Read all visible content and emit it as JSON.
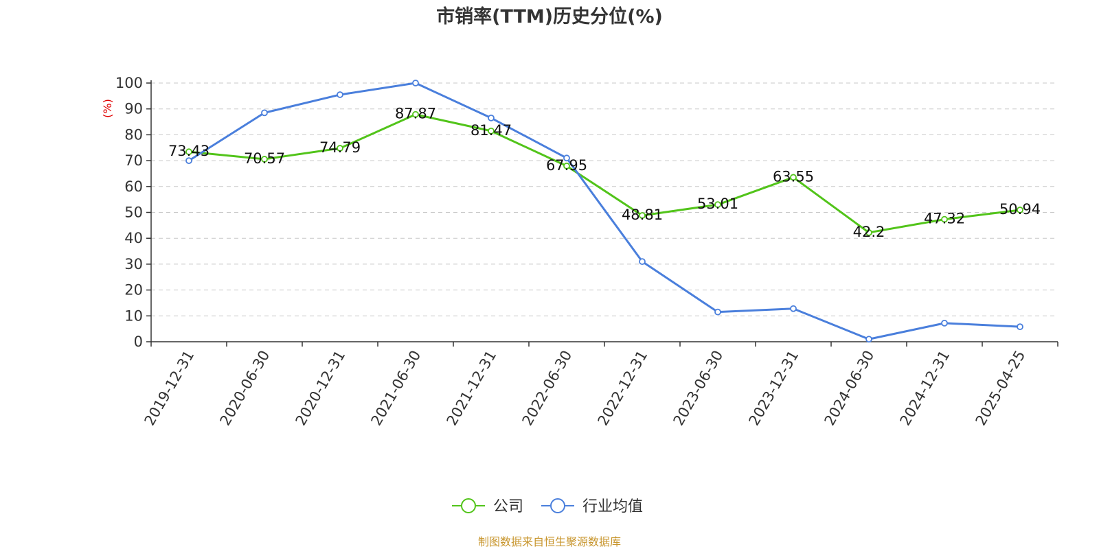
{
  "chart_data": {
    "type": "line",
    "title": "市销率(TTM)历史分位(%)",
    "ylabel": "(%)",
    "ylim": [
      0,
      100
    ],
    "yticks": [
      0,
      10,
      20,
      30,
      40,
      50,
      60,
      70,
      80,
      90,
      100
    ],
    "grid": true,
    "legend_position": "bottom",
    "categories": [
      "2019-12-31",
      "2020-06-30",
      "2020-12-31",
      "2021-06-30",
      "2021-12-31",
      "2022-06-30",
      "2022-12-31",
      "2023-06-30",
      "2023-12-31",
      "2024-06-30",
      "2024-12-31",
      "2025-04-25"
    ],
    "series": [
      {
        "name": "公司",
        "color": "#52c41a",
        "show_labels": true,
        "values": [
          73.43,
          70.57,
          74.79,
          87.87,
          81.47,
          67.95,
          48.81,
          53.01,
          63.55,
          42.2,
          47.32,
          50.94
        ]
      },
      {
        "name": "行业均值",
        "color": "#4a7fdc",
        "show_labels": false,
        "values": [
          70,
          88.5,
          95.5,
          100,
          86.5,
          71,
          31,
          11.5,
          12.8,
          1,
          7.2,
          5.8
        ]
      }
    ],
    "source": "制图数据来自恒生聚源数据库"
  }
}
